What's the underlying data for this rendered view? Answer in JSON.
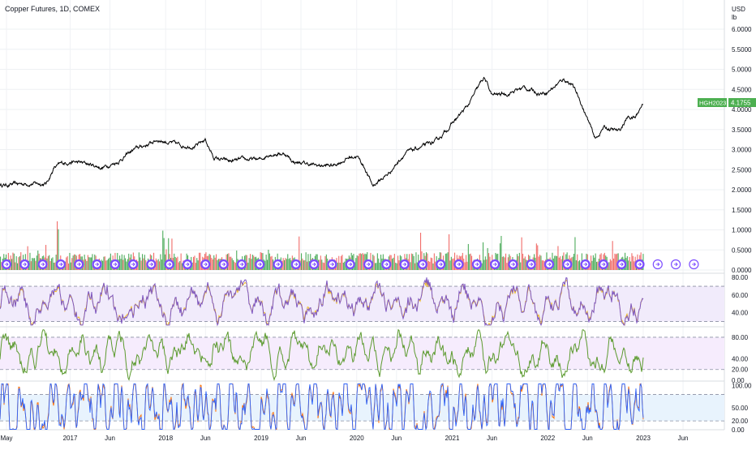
{
  "header": {
    "title": "Copper Futures, 1D, COMEX"
  },
  "price_axis": {
    "currency": "USD",
    "unit": "lb"
  },
  "price_tag": {
    "symbol": "HGH2023",
    "value": "4.1755"
  },
  "colors": {
    "price_line": "#000000",
    "volume_up": "#26a69a",
    "volume_green": "#2e9e3e",
    "volume_down": "#ef5350",
    "rsi_line": "#7e57c2",
    "rsi_signal": "#f0b400",
    "rsi_band": "#f1ebfb",
    "mfi_line": "#5b9a2e",
    "mfi_band": "#f6ecfd",
    "stoch_k": "#2962ff",
    "stoch_d": "#ff6d00",
    "stoch_band": "#e8f3fd",
    "tag_bg": "#4caf50",
    "event_marker": "#7c4dff"
  },
  "chart_data": [
    {
      "type": "line",
      "panel": "price",
      "y_ticks": [
        "6.0000",
        "5.5000",
        "5.0000",
        "4.5000",
        "4.0000",
        "3.5000",
        "3.0000",
        "2.5000",
        "2.0000",
        "1.5000",
        "1.0000",
        "0.5000",
        "0.0000"
      ],
      "ylim": [
        0,
        6.4
      ],
      "x_labels": [
        "May",
        "2017",
        "Jun",
        "2018",
        "Jun",
        "2019",
        "Jun",
        "2020",
        "Jun",
        "2021",
        "Jun",
        "2022",
        "Jun",
        "2023",
        "Jun"
      ],
      "x_label_dates": [
        "2016-05",
        "2017-01",
        "2017-06",
        "2018-01",
        "2018-06",
        "2019-01",
        "2019-06",
        "2020-01",
        "2020-06",
        "2021-01",
        "2021-06",
        "2022-01",
        "2022-06",
        "2023-01",
        "2023-06"
      ],
      "series": [
        {
          "points": [
            [
              "2016-05",
              2.12
            ],
            [
              "2016-08",
              2.16
            ],
            [
              "2016-10",
              2.15
            ],
            [
              "2016-11",
              2.55
            ],
            [
              "2016-12",
              2.65
            ],
            [
              "2017-01",
              2.7
            ],
            [
              "2017-03",
              2.65
            ],
            [
              "2017-05",
              2.55
            ],
            [
              "2017-07",
              2.7
            ],
            [
              "2017-09",
              3.0
            ],
            [
              "2017-11",
              3.15
            ],
            [
              "2017-12",
              3.25
            ],
            [
              "2018-01",
              3.2
            ],
            [
              "2018-03",
              3.1
            ],
            [
              "2018-05",
              3.1
            ],
            [
              "2018-06",
              3.25
            ],
            [
              "2018-07",
              2.8
            ],
            [
              "2018-09",
              2.7
            ],
            [
              "2018-11",
              2.75
            ],
            [
              "2019-01",
              2.75
            ],
            [
              "2019-02",
              2.9
            ],
            [
              "2019-04",
              2.9
            ],
            [
              "2019-05",
              2.7
            ],
            [
              "2019-08",
              2.6
            ],
            [
              "2019-10",
              2.6
            ],
            [
              "2019-12",
              2.8
            ],
            [
              "2020-01",
              2.85
            ],
            [
              "2020-02",
              2.55
            ],
            [
              "2020-03",
              2.1
            ],
            [
              "2020-05",
              2.4
            ],
            [
              "2020-07",
              2.9
            ],
            [
              "2020-09",
              3.05
            ],
            [
              "2020-11",
              3.2
            ],
            [
              "2021-01",
              3.65
            ],
            [
              "2021-03",
              4.1
            ],
            [
              "2021-05",
              4.8
            ],
            [
              "2021-06",
              4.35
            ],
            [
              "2021-08",
              4.4
            ],
            [
              "2021-10",
              4.55
            ],
            [
              "2021-12",
              4.4
            ],
            [
              "2022-01",
              4.45
            ],
            [
              "2022-03",
              4.75
            ],
            [
              "2022-04",
              4.65
            ],
            [
              "2022-05",
              4.25
            ],
            [
              "2022-07",
              3.25
            ],
            [
              "2022-08",
              3.55
            ],
            [
              "2022-10",
              3.45
            ],
            [
              "2022-11",
              3.8
            ],
            [
              "2022-12",
              3.8
            ],
            [
              "2023-01",
              4.18
            ]
          ]
        }
      ]
    },
    {
      "type": "bar",
      "panel": "volume",
      "note": "daily volume bars, green/red"
    },
    {
      "type": "line",
      "panel": "rsi",
      "y_ticks": [
        "80.00",
        "60.00",
        "40.00"
      ],
      "bands": [
        70,
        30
      ],
      "ylim": [
        25,
        82
      ]
    },
    {
      "type": "line",
      "panel": "mfi",
      "y_ticks": [
        "80.00",
        "40.00",
        "20.00",
        "0.00"
      ],
      "bands": [
        80,
        20
      ],
      "ylim": [
        0,
        95
      ]
    },
    {
      "type": "line",
      "panel": "stochastic",
      "y_ticks": [
        "100.00",
        "50.00",
        "20.00",
        "0.00"
      ],
      "bands": [
        80,
        20
      ],
      "ylim": [
        0,
        105
      ]
    }
  ]
}
